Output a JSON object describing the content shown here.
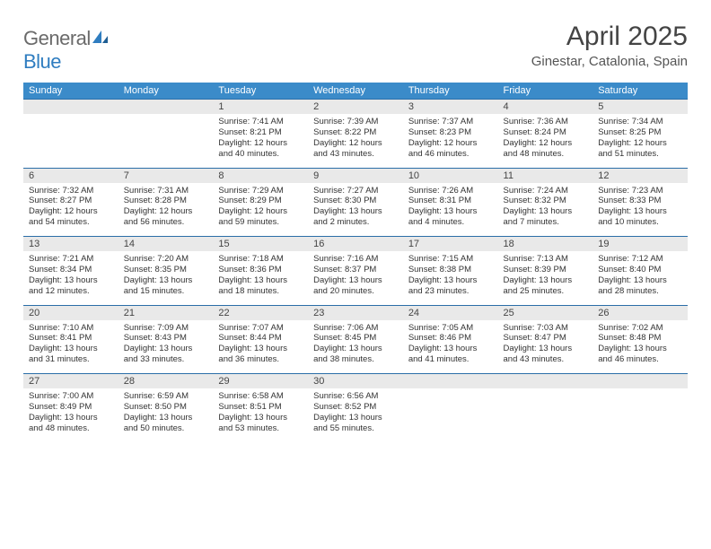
{
  "brand": {
    "part1": "General",
    "part2": "Blue"
  },
  "title": "April 2025",
  "location": "Ginestar, Catalonia, Spain",
  "colors": {
    "header_bg": "#3b8bc9",
    "header_text": "#ffffff",
    "daynum_bg": "#e9e9e9",
    "rule": "#2b6ea8",
    "logo_gray": "#6a6a6a",
    "logo_blue": "#2f7dc0"
  },
  "dow": [
    "Sunday",
    "Monday",
    "Tuesday",
    "Wednesday",
    "Thursday",
    "Friday",
    "Saturday"
  ],
  "weeks": [
    [
      null,
      null,
      {
        "n": "1",
        "sr": "7:41 AM",
        "ss": "8:21 PM",
        "dl": "12 hours and 40 minutes."
      },
      {
        "n": "2",
        "sr": "7:39 AM",
        "ss": "8:22 PM",
        "dl": "12 hours and 43 minutes."
      },
      {
        "n": "3",
        "sr": "7:37 AM",
        "ss": "8:23 PM",
        "dl": "12 hours and 46 minutes."
      },
      {
        "n": "4",
        "sr": "7:36 AM",
        "ss": "8:24 PM",
        "dl": "12 hours and 48 minutes."
      },
      {
        "n": "5",
        "sr": "7:34 AM",
        "ss": "8:25 PM",
        "dl": "12 hours and 51 minutes."
      }
    ],
    [
      {
        "n": "6",
        "sr": "7:32 AM",
        "ss": "8:27 PM",
        "dl": "12 hours and 54 minutes."
      },
      {
        "n": "7",
        "sr": "7:31 AM",
        "ss": "8:28 PM",
        "dl": "12 hours and 56 minutes."
      },
      {
        "n": "8",
        "sr": "7:29 AM",
        "ss": "8:29 PM",
        "dl": "12 hours and 59 minutes."
      },
      {
        "n": "9",
        "sr": "7:27 AM",
        "ss": "8:30 PM",
        "dl": "13 hours and 2 minutes."
      },
      {
        "n": "10",
        "sr": "7:26 AM",
        "ss": "8:31 PM",
        "dl": "13 hours and 4 minutes."
      },
      {
        "n": "11",
        "sr": "7:24 AM",
        "ss": "8:32 PM",
        "dl": "13 hours and 7 minutes."
      },
      {
        "n": "12",
        "sr": "7:23 AM",
        "ss": "8:33 PM",
        "dl": "13 hours and 10 minutes."
      }
    ],
    [
      {
        "n": "13",
        "sr": "7:21 AM",
        "ss": "8:34 PM",
        "dl": "13 hours and 12 minutes."
      },
      {
        "n": "14",
        "sr": "7:20 AM",
        "ss": "8:35 PM",
        "dl": "13 hours and 15 minutes."
      },
      {
        "n": "15",
        "sr": "7:18 AM",
        "ss": "8:36 PM",
        "dl": "13 hours and 18 minutes."
      },
      {
        "n": "16",
        "sr": "7:16 AM",
        "ss": "8:37 PM",
        "dl": "13 hours and 20 minutes."
      },
      {
        "n": "17",
        "sr": "7:15 AM",
        "ss": "8:38 PM",
        "dl": "13 hours and 23 minutes."
      },
      {
        "n": "18",
        "sr": "7:13 AM",
        "ss": "8:39 PM",
        "dl": "13 hours and 25 minutes."
      },
      {
        "n": "19",
        "sr": "7:12 AM",
        "ss": "8:40 PM",
        "dl": "13 hours and 28 minutes."
      }
    ],
    [
      {
        "n": "20",
        "sr": "7:10 AM",
        "ss": "8:41 PM",
        "dl": "13 hours and 31 minutes."
      },
      {
        "n": "21",
        "sr": "7:09 AM",
        "ss": "8:43 PM",
        "dl": "13 hours and 33 minutes."
      },
      {
        "n": "22",
        "sr": "7:07 AM",
        "ss": "8:44 PM",
        "dl": "13 hours and 36 minutes."
      },
      {
        "n": "23",
        "sr": "7:06 AM",
        "ss": "8:45 PM",
        "dl": "13 hours and 38 minutes."
      },
      {
        "n": "24",
        "sr": "7:05 AM",
        "ss": "8:46 PM",
        "dl": "13 hours and 41 minutes."
      },
      {
        "n": "25",
        "sr": "7:03 AM",
        "ss": "8:47 PM",
        "dl": "13 hours and 43 minutes."
      },
      {
        "n": "26",
        "sr": "7:02 AM",
        "ss": "8:48 PM",
        "dl": "13 hours and 46 minutes."
      }
    ],
    [
      {
        "n": "27",
        "sr": "7:00 AM",
        "ss": "8:49 PM",
        "dl": "13 hours and 48 minutes."
      },
      {
        "n": "28",
        "sr": "6:59 AM",
        "ss": "8:50 PM",
        "dl": "13 hours and 50 minutes."
      },
      {
        "n": "29",
        "sr": "6:58 AM",
        "ss": "8:51 PM",
        "dl": "13 hours and 53 minutes."
      },
      {
        "n": "30",
        "sr": "6:56 AM",
        "ss": "8:52 PM",
        "dl": "13 hours and 55 minutes."
      },
      null,
      null,
      null
    ]
  ],
  "labels": {
    "sunrise": "Sunrise: ",
    "sunset": "Sunset: ",
    "daylight": "Daylight: "
  }
}
